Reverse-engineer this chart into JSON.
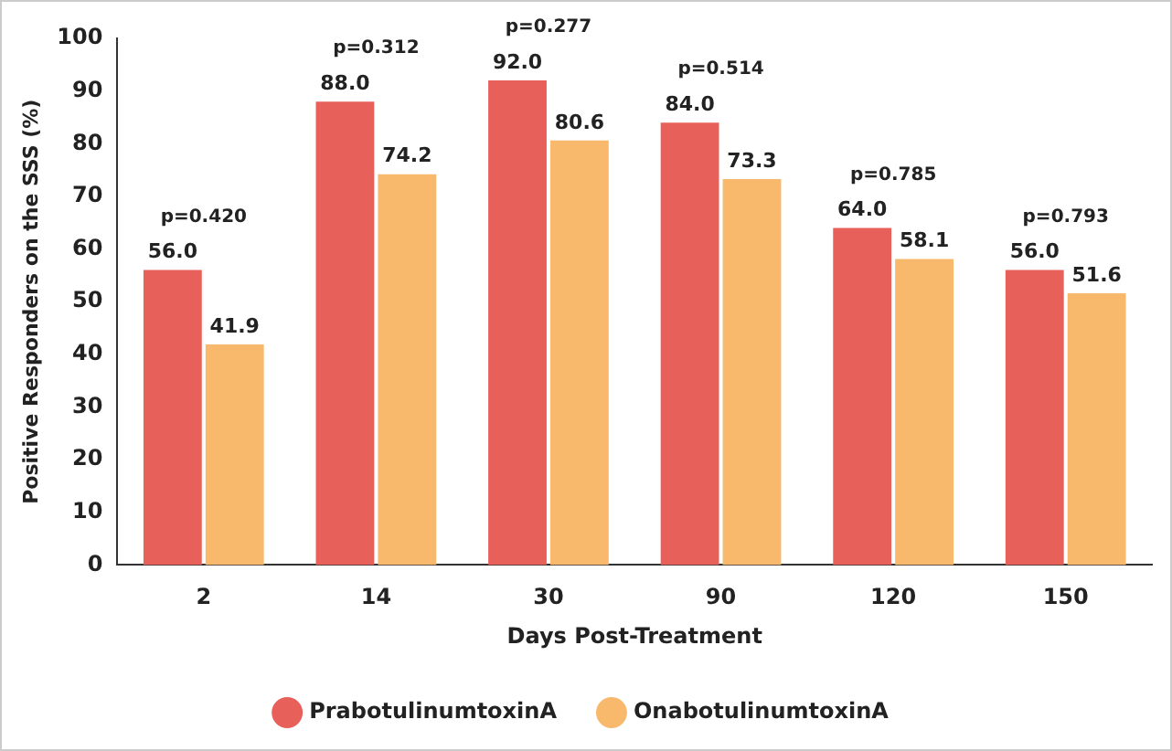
{
  "chart_data": {
    "type": "bar",
    "xlabel": "Days Post-Treatment",
    "ylabel": "Positive Responders on the SSS (%)",
    "categories": [
      "2",
      "14",
      "30",
      "90",
      "120",
      "150"
    ],
    "series": [
      {
        "name": "PrabotulinumtoxinA",
        "color": "#e8605a",
        "values": [
          56.0,
          88.0,
          92.0,
          84.0,
          64.0,
          56.0
        ]
      },
      {
        "name": "OnabotulinumtoxinA",
        "color": "#f8b96c",
        "values": [
          41.9,
          74.2,
          80.6,
          73.3,
          58.1,
          51.6
        ]
      }
    ],
    "value_labels": [
      [
        "56.0",
        "88.0",
        "92.0",
        "84.0",
        "64.0",
        "56.0"
      ],
      [
        "41.9",
        "74.2",
        "80.6",
        "73.3",
        "58.1",
        "51.6"
      ]
    ],
    "annotations": [
      "p=0.420",
      "p=0.312",
      "p=0.277",
      "p=0.514",
      "p=0.785",
      "p=0.793"
    ],
    "ylim": [
      0,
      100
    ],
    "yticks": [
      0,
      10,
      20,
      30,
      40,
      50,
      60,
      70,
      80,
      90,
      100
    ],
    "grid": false,
    "legend": "bottom"
  }
}
